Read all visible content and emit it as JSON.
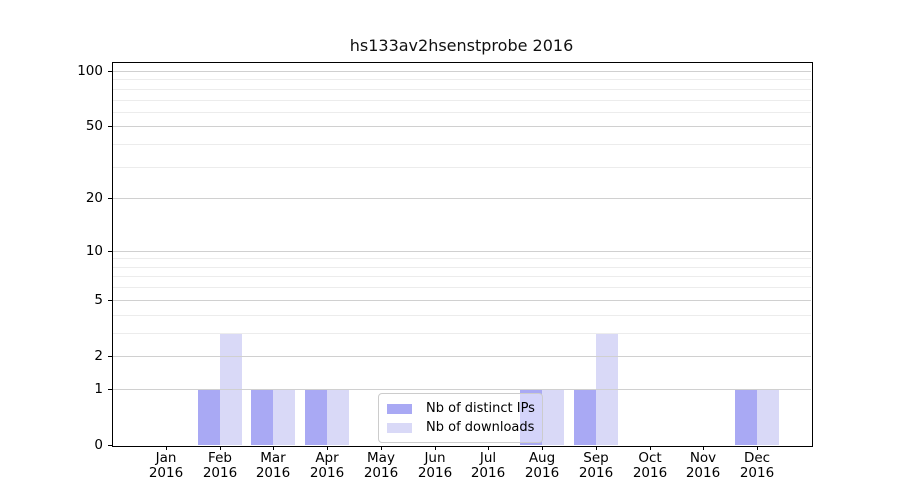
{
  "chart_data": {
    "type": "bar",
    "title": "hs133av2hsenstprobe 2016",
    "categories": [
      "Jan 2016",
      "Feb 2016",
      "Mar 2016",
      "Apr 2016",
      "May 2016",
      "Jun 2016",
      "Jul 2016",
      "Aug 2016",
      "Sep 2016",
      "Oct 2016",
      "Nov 2016",
      "Dec 2016"
    ],
    "series": [
      {
        "name": "Nb of distinct IPs",
        "color": "#a9a9f4",
        "values": [
          0,
          1,
          1,
          1,
          0,
          0,
          0,
          1,
          1,
          0,
          0,
          1
        ]
      },
      {
        "name": "Nb of downloads",
        "color": "#d9d9f7",
        "values": [
          0,
          3,
          1,
          1,
          0,
          0,
          0,
          1,
          3,
          0,
          0,
          1
        ]
      }
    ],
    "yscale": "log10(1+x)",
    "ylim": [
      0,
      112
    ],
    "yticks": [
      0,
      1,
      2,
      5,
      10,
      20,
      50,
      100
    ],
    "minor_yticks": [
      3,
      4,
      6,
      7,
      8,
      9,
      30,
      40,
      60,
      70,
      80,
      90
    ],
    "grid": true,
    "legend_position": "lower center inside plot"
  },
  "colors": {
    "grid_major": "#d0d0d0",
    "grid_minor": "#ececec",
    "axis": "#000000",
    "background": "#ffffff"
  }
}
